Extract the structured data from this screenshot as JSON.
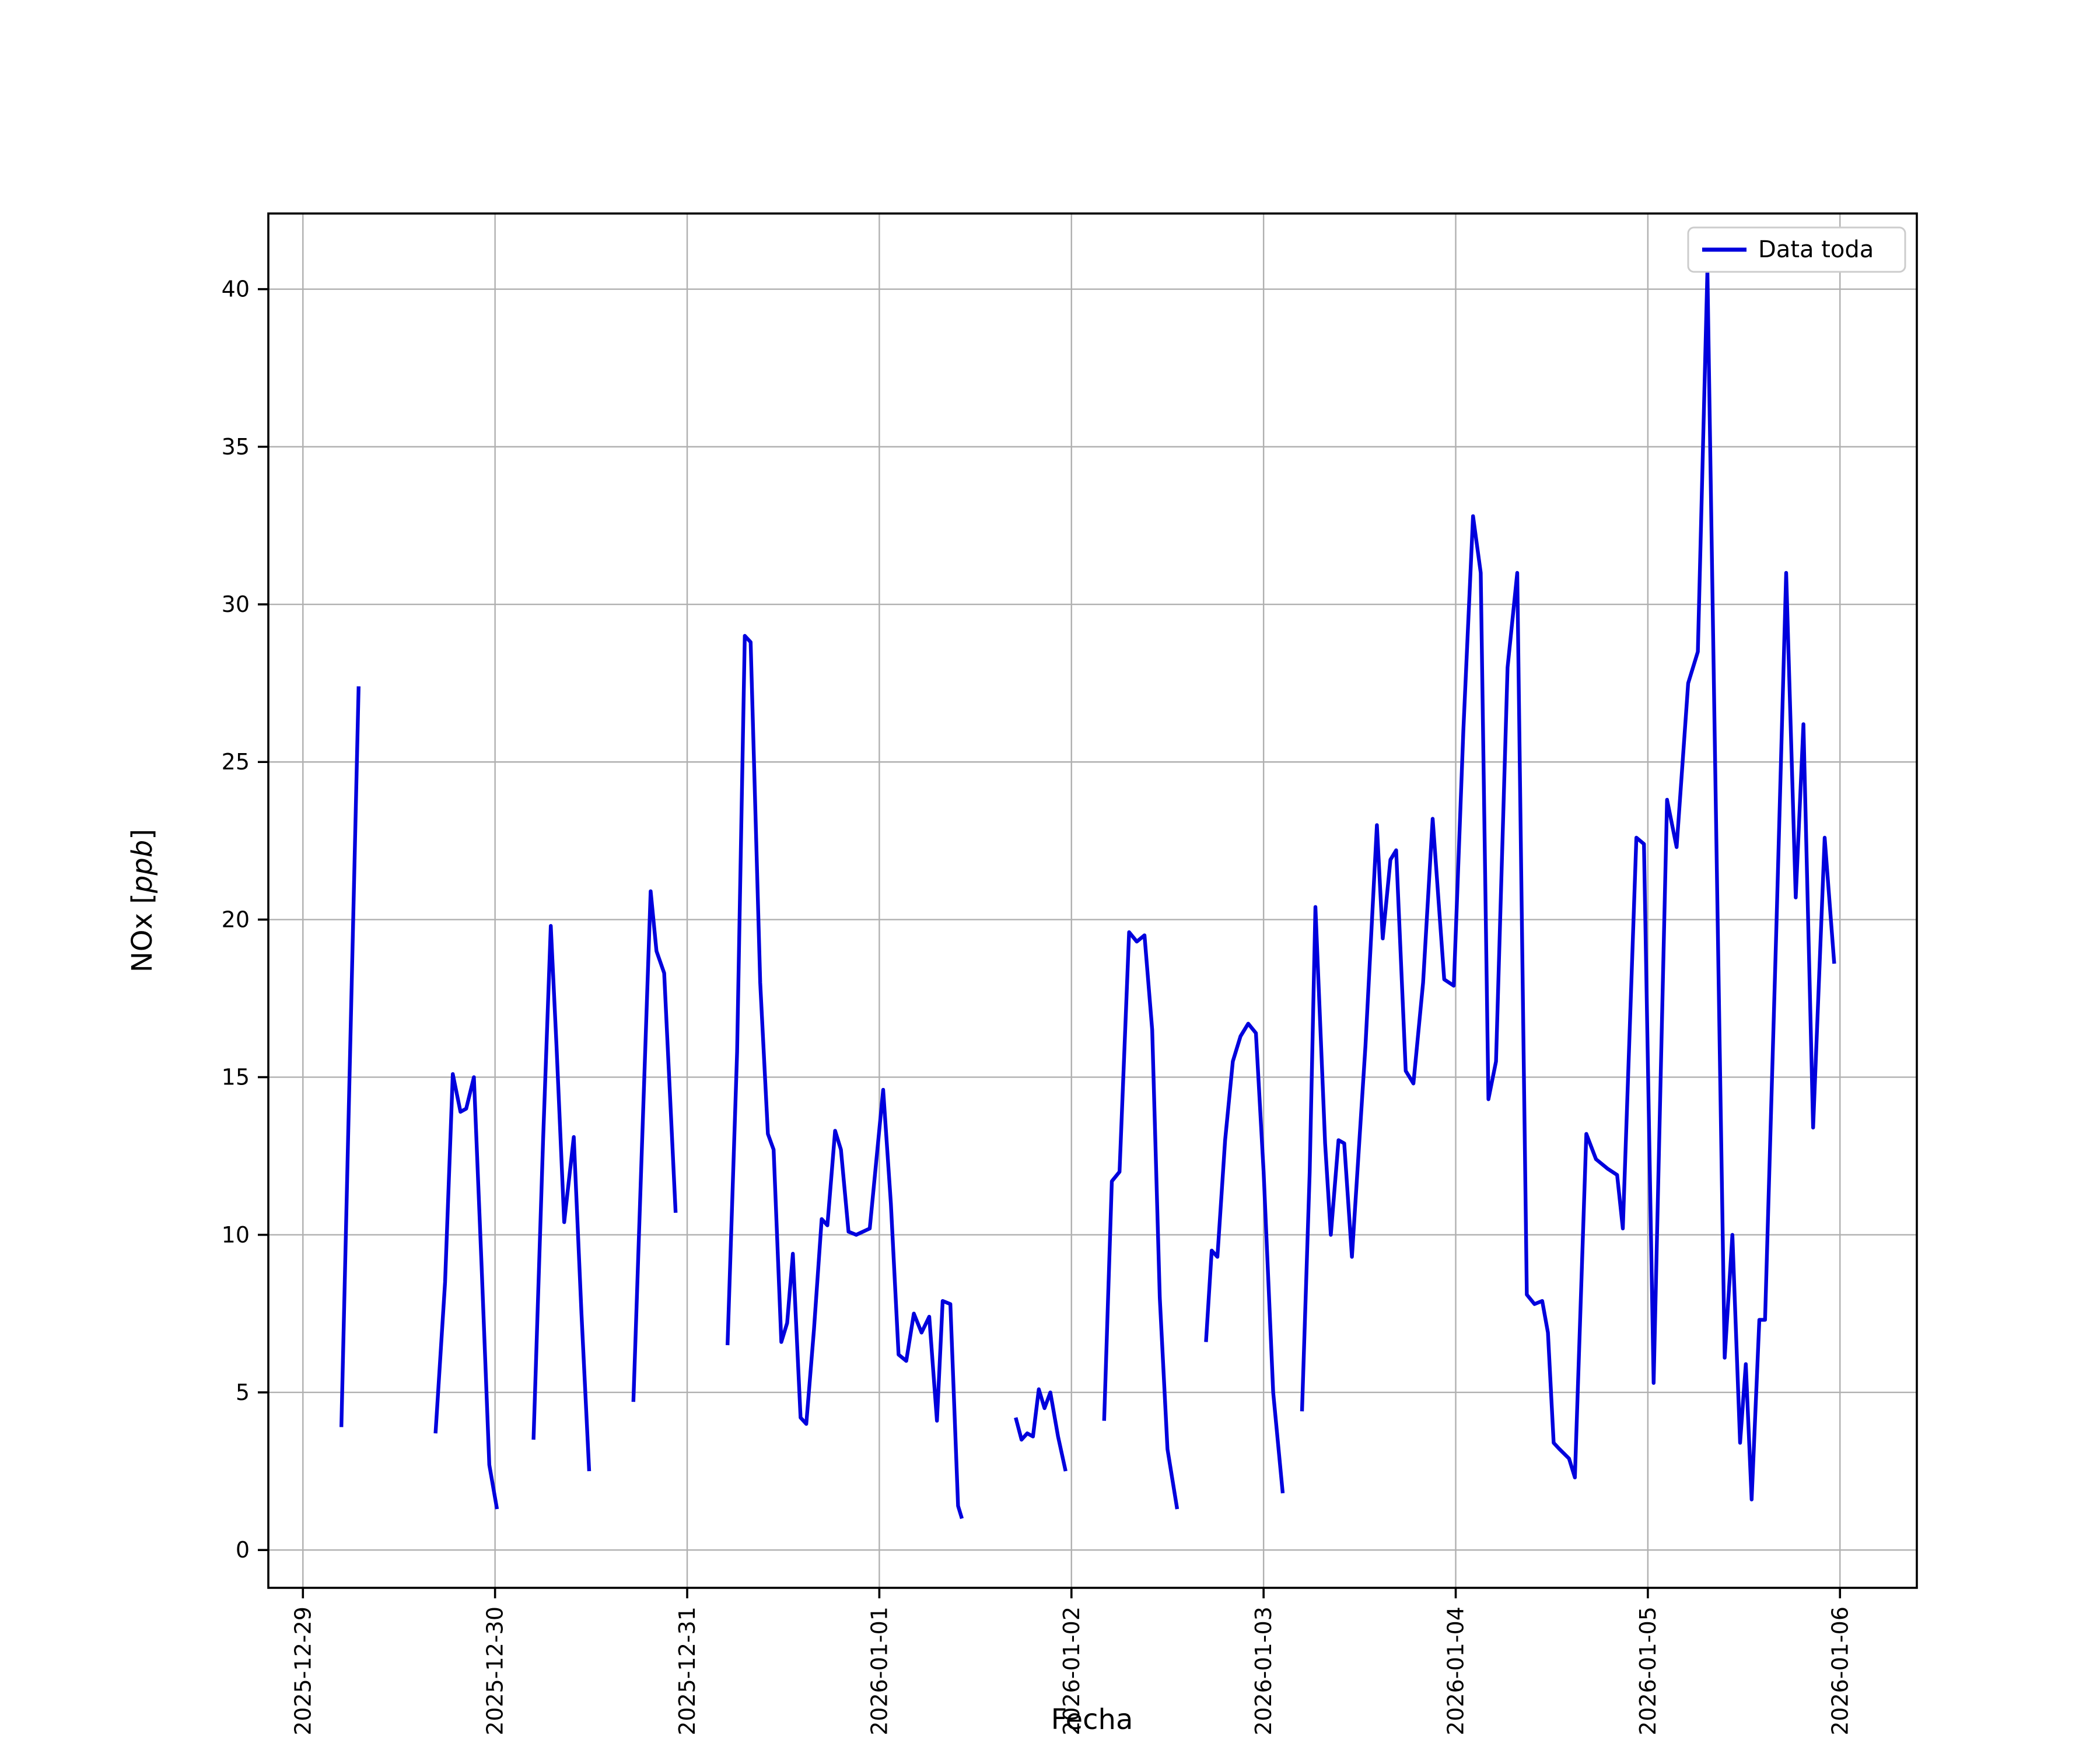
{
  "style": {
    "line_color": "#0000dd",
    "grid_color": "#b0b0b0",
    "axes_color": "#000000",
    "background_color": "#ffffff",
    "legend_border_color": "#cccccc"
  },
  "chart_data": {
    "type": "line",
    "title": "",
    "xlabel": "Fecha",
    "ylabel": "NOx [ppb]",
    "ylabel_prefix": "NOx [",
    "ylabel_italic": "ppb",
    "ylabel_suffix": "]",
    "legend": [
      {
        "label": "Data toda",
        "color": "#0000dd"
      }
    ],
    "legend_position": "upper right",
    "grid": true,
    "x_unit": "days since 2025-12-29",
    "xlim": [
      -0.18,
      8.4
    ],
    "ylim": [
      -1.2,
      42.4
    ],
    "x_ticks": [
      {
        "pos": 0,
        "label": "2025-12-29"
      },
      {
        "pos": 1,
        "label": "2025-12-30"
      },
      {
        "pos": 2,
        "label": "2025-12-31"
      },
      {
        "pos": 3,
        "label": "2026-01-01"
      },
      {
        "pos": 4,
        "label": "2026-01-02"
      },
      {
        "pos": 5,
        "label": "2026-01-03"
      },
      {
        "pos": 6,
        "label": "2026-01-04"
      },
      {
        "pos": 7,
        "label": "2026-01-05"
      },
      {
        "pos": 8,
        "label": "2026-01-06"
      }
    ],
    "y_ticks": [
      0,
      5,
      10,
      15,
      20,
      25,
      30,
      35,
      40
    ],
    "segments": [
      [
        [
          0.2,
          3.9
        ],
        [
          0.29,
          27.4
        ]
      ],
      [
        [
          0.69,
          3.7
        ],
        [
          0.74,
          8.5
        ],
        [
          0.78,
          15.1
        ],
        [
          0.82,
          13.9
        ],
        [
          0.85,
          14.0
        ],
        [
          0.89,
          15.0
        ],
        [
          0.93,
          9.0
        ],
        [
          0.97,
          2.7
        ],
        [
          1.01,
          1.3
        ]
      ],
      [
        [
          1.2,
          3.5
        ],
        [
          1.25,
          13.0
        ],
        [
          1.29,
          19.8
        ],
        [
          1.32,
          16.0
        ],
        [
          1.36,
          10.4
        ],
        [
          1.41,
          13.1
        ],
        [
          1.45,
          7.5
        ],
        [
          1.49,
          2.5
        ]
      ],
      [
        [
          1.72,
          4.7
        ],
        [
          1.76,
          12.0
        ],
        [
          1.81,
          20.9
        ],
        [
          1.84,
          19.0
        ],
        [
          1.88,
          18.3
        ],
        [
          1.94,
          10.7
        ]
      ],
      [
        [
          2.21,
          6.5
        ],
        [
          2.26,
          15.8
        ],
        [
          2.3,
          29.0
        ],
        [
          2.33,
          28.8
        ],
        [
          2.38,
          18.0
        ],
        [
          2.42,
          13.2
        ],
        [
          2.45,
          12.7
        ],
        [
          2.49,
          6.6
        ],
        [
          2.52,
          7.2
        ],
        [
          2.55,
          9.4
        ],
        [
          2.59,
          4.2
        ],
        [
          2.62,
          4.0
        ],
        [
          2.66,
          7.0
        ],
        [
          2.7,
          10.5
        ],
        [
          2.73,
          10.3
        ],
        [
          2.77,
          13.3
        ],
        [
          2.8,
          12.7
        ],
        [
          2.84,
          10.1
        ],
        [
          2.88,
          10.0
        ],
        [
          2.95,
          10.2
        ],
        [
          3.02,
          14.6
        ],
        [
          3.06,
          11.0
        ],
        [
          3.1,
          6.2
        ],
        [
          3.14,
          6.0
        ],
        [
          3.18,
          7.5
        ],
        [
          3.22,
          6.9
        ],
        [
          3.26,
          7.4
        ],
        [
          3.3,
          4.1
        ],
        [
          3.33,
          7.9
        ],
        [
          3.37,
          7.8
        ],
        [
          3.41,
          1.4
        ],
        [
          3.43,
          1.0
        ]
      ],
      [
        [
          3.71,
          4.2
        ],
        [
          3.74,
          3.5
        ],
        [
          3.77,
          3.7
        ],
        [
          3.8,
          3.6
        ],
        [
          3.83,
          5.1
        ],
        [
          3.86,
          4.5
        ],
        [
          3.89,
          5.0
        ],
        [
          3.93,
          3.6
        ],
        [
          3.97,
          2.5
        ]
      ],
      [
        [
          4.17,
          4.1
        ],
        [
          4.21,
          11.7
        ],
        [
          4.25,
          12.0
        ],
        [
          4.3,
          19.6
        ],
        [
          4.34,
          19.3
        ],
        [
          4.38,
          19.5
        ],
        [
          4.42,
          16.5
        ],
        [
          4.46,
          8.0
        ],
        [
          4.5,
          3.2
        ],
        [
          4.55,
          1.3
        ]
      ],
      [
        [
          4.7,
          6.6
        ],
        [
          4.73,
          9.5
        ],
        [
          4.76,
          9.3
        ],
        [
          4.8,
          13.0
        ],
        [
          4.84,
          15.5
        ],
        [
          4.88,
          16.3
        ],
        [
          4.92,
          16.7
        ],
        [
          4.96,
          16.4
        ],
        [
          5.0,
          12.0
        ],
        [
          5.05,
          5.0
        ],
        [
          5.1,
          1.8
        ]
      ],
      [
        [
          5.2,
          4.4
        ],
        [
          5.24,
          12.0
        ],
        [
          5.27,
          20.4
        ],
        [
          5.32,
          12.9
        ],
        [
          5.35,
          10.0
        ],
        [
          5.39,
          13.0
        ],
        [
          5.42,
          12.9
        ],
        [
          5.46,
          9.3
        ],
        [
          5.53,
          16.0
        ],
        [
          5.59,
          23.0
        ],
        [
          5.62,
          19.4
        ],
        [
          5.66,
          21.9
        ],
        [
          5.69,
          22.2
        ],
        [
          5.74,
          15.2
        ],
        [
          5.78,
          14.8
        ],
        [
          5.83,
          18.0
        ],
        [
          5.88,
          23.2
        ],
        [
          5.94,
          18.1
        ],
        [
          5.99,
          17.9
        ],
        [
          6.04,
          26.0
        ],
        [
          6.09,
          32.8
        ],
        [
          6.13,
          31.0
        ],
        [
          6.17,
          14.3
        ],
        [
          6.21,
          15.5
        ],
        [
          6.27,
          28.0
        ],
        [
          6.32,
          31.0
        ],
        [
          6.37,
          8.1
        ],
        [
          6.41,
          7.8
        ],
        [
          6.45,
          7.9
        ],
        [
          6.48,
          6.9
        ],
        [
          6.51,
          3.4
        ],
        [
          6.54,
          3.2
        ],
        [
          6.59,
          2.9
        ],
        [
          6.62,
          2.3
        ],
        [
          6.68,
          13.2
        ],
        [
          6.73,
          12.4
        ],
        [
          6.79,
          12.1
        ],
        [
          6.84,
          11.9
        ],
        [
          6.87,
          10.2
        ],
        [
          6.94,
          22.6
        ],
        [
          6.98,
          22.4
        ],
        [
          7.03,
          5.3
        ],
        [
          7.1,
          23.8
        ],
        [
          7.15,
          22.3
        ],
        [
          7.21,
          27.5
        ],
        [
          7.26,
          28.5
        ],
        [
          7.31,
          40.6
        ],
        [
          7.35,
          25.0
        ],
        [
          7.4,
          6.1
        ],
        [
          7.44,
          10.0
        ],
        [
          7.48,
          3.4
        ],
        [
          7.51,
          5.9
        ],
        [
          7.54,
          1.6
        ],
        [
          7.58,
          7.3
        ],
        [
          7.61,
          7.3
        ],
        [
          7.67,
          20.0
        ],
        [
          7.72,
          31.0
        ],
        [
          7.77,
          20.7
        ],
        [
          7.81,
          26.2
        ],
        [
          7.86,
          13.4
        ],
        [
          7.92,
          22.6
        ],
        [
          7.97,
          18.6
        ]
      ]
    ]
  }
}
